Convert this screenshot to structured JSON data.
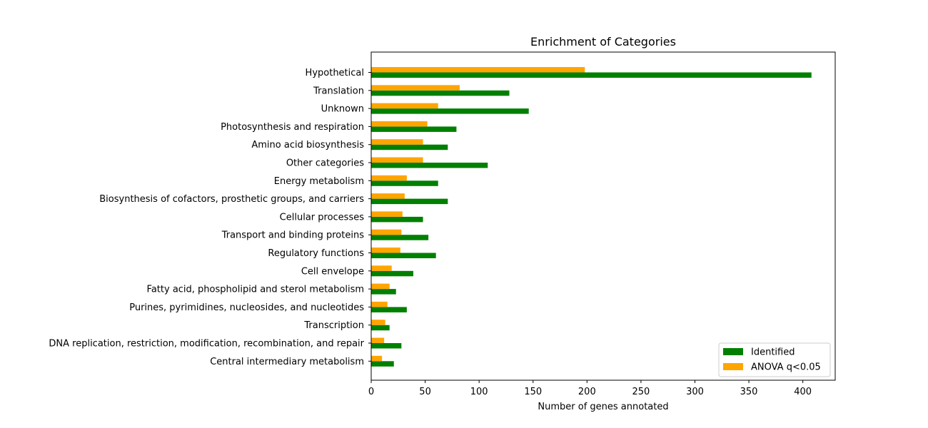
{
  "chart_data": {
    "type": "bar",
    "orientation": "horizontal",
    "title": "Enrichment of Categories",
    "xlabel": "Number of genes annotated",
    "ylabel": "",
    "xlim": [
      0,
      430
    ],
    "xticks": [
      0,
      50,
      100,
      150,
      200,
      250,
      300,
      350,
      400
    ],
    "categories": [
      "Hypothetical",
      "Translation",
      "Unknown",
      "Photosynthesis and respiration",
      "Amino acid biosynthesis",
      "Other categories",
      "Energy metabolism",
      "Biosynthesis of cofactors, prosthetic groups, and carriers",
      "Cellular processes",
      "Transport and binding proteins",
      "Regulatory functions",
      "Cell envelope",
      "Fatty acid, phospholipid and sterol metabolism",
      "Purines, pyrimidines, nucleosides, and nucleotides",
      "Transcription",
      "DNA replication, restriction, modification, recombination, and repair",
      "Central intermediary metabolism"
    ],
    "series": [
      {
        "name": "Identified",
        "color": "#008000",
        "values": [
          408,
          128,
          146,
          79,
          71,
          108,
          62,
          71,
          48,
          53,
          60,
          39,
          23,
          33,
          17,
          28,
          21
        ]
      },
      {
        "name": "ANOVA q<0.05",
        "color": "#ffa500",
        "values": [
          198,
          82,
          62,
          52,
          48,
          48,
          33,
          31,
          29,
          28,
          27,
          19,
          17,
          15,
          13,
          12,
          10
        ]
      }
    ],
    "grid": false,
    "legend_position": "bottom-right"
  }
}
